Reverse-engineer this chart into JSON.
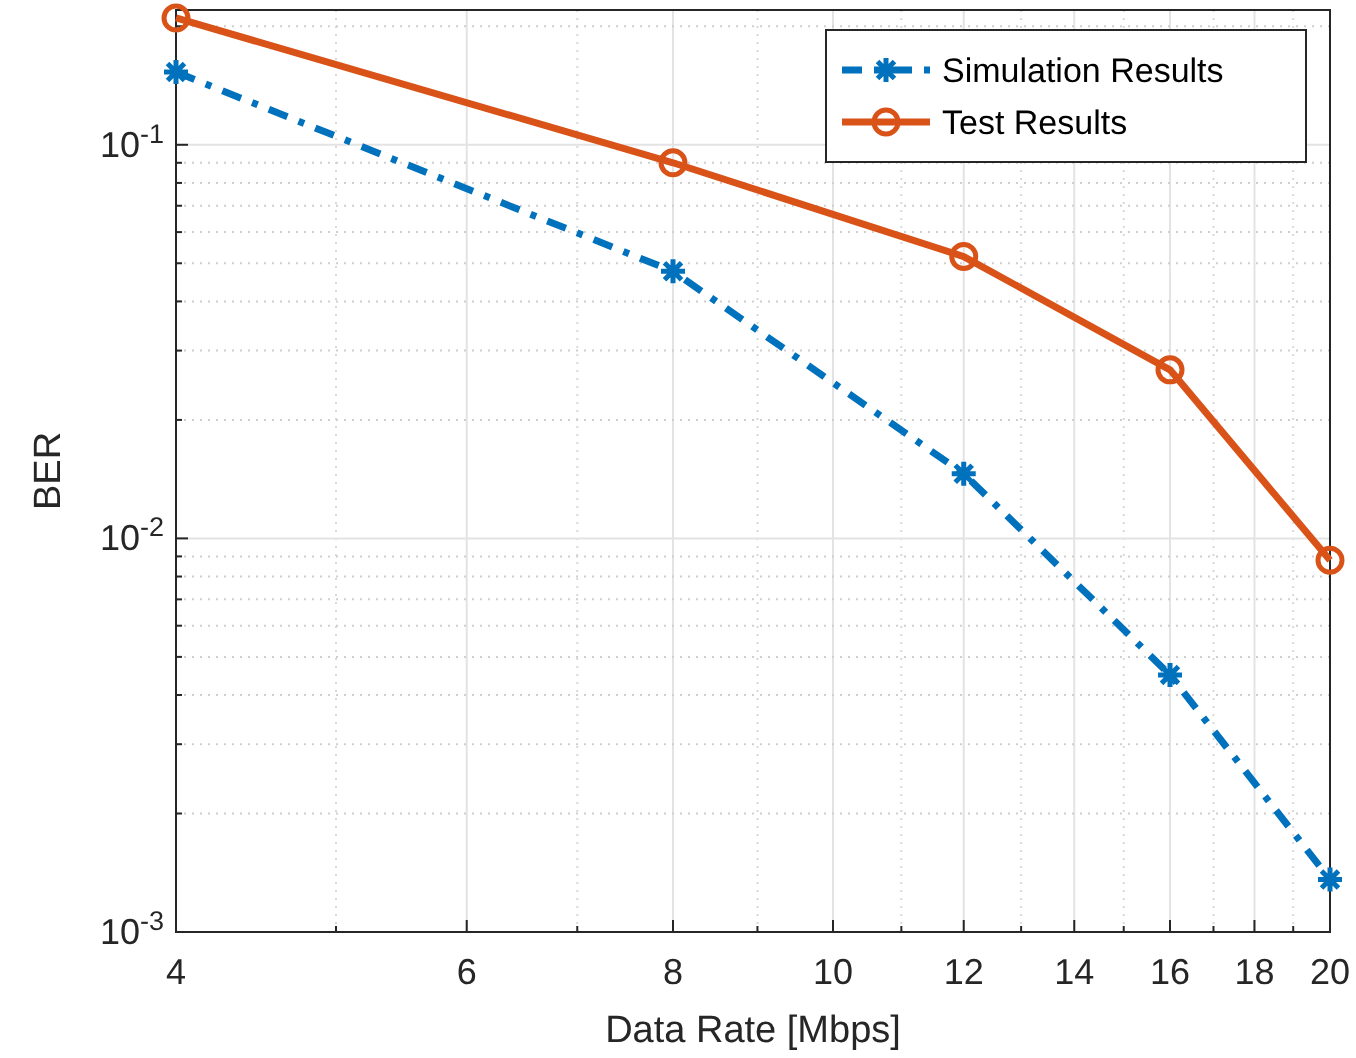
{
  "chart_data": {
    "type": "line",
    "xlabel": "Data Rate [Mbps]",
    "ylabel": "BER",
    "log": "xy",
    "grid": true,
    "legend": "top right",
    "xlim": [
      4,
      20
    ],
    "ylim": [
      0.001,
      0.22
    ],
    "xticks": [
      4,
      {
        "value": 5,
        "label": null
      },
      6,
      {
        "value": 7,
        "label": null
      },
      8,
      {
        "value": 9,
        "label": null
      },
      10,
      {
        "value": 11,
        "label": null
      },
      12,
      {
        "value": 13,
        "label": null
      },
      14,
      {
        "value": 15,
        "label": null
      },
      16,
      {
        "value": 17,
        "label": null
      },
      18,
      {
        "value": 19,
        "label": null
      },
      20
    ],
    "yticks": [
      {
        "value": 0.001,
        "label": "10$^{-3}$"
      },
      {
        "value": 0.002,
        "label": null
      },
      {
        "value": 0.003,
        "label": null
      },
      {
        "value": 0.004,
        "label": null
      },
      {
        "value": 0.005,
        "label": null
      },
      {
        "value": 0.006,
        "label": null
      },
      {
        "value": 0.007,
        "label": null
      },
      {
        "value": 0.008,
        "label": null
      },
      {
        "value": 0.009,
        "label": null
      },
      {
        "value": 0.01,
        "label": "10$^{-2}$"
      },
      {
        "value": 0.02,
        "label": null
      },
      {
        "value": 0.03,
        "label": null
      },
      {
        "value": 0.04,
        "label": null
      },
      {
        "value": 0.05,
        "label": null
      },
      {
        "value": 0.06,
        "label": null
      },
      {
        "value": 0.07,
        "label": null
      },
      {
        "value": 0.08,
        "label": null
      },
      {
        "value": 0.09,
        "label": null
      },
      {
        "value": 0.1,
        "label": "10$^{-1}$"
      },
      {
        "value": 0.2,
        "label": null
      }
    ],
    "x": [
      4,
      8,
      12,
      16,
      20
    ],
    "series": [
      {
        "name": "Simulation Results",
        "color": "#0072bd",
        "marker": "cross",
        "line_style": "dashed",
        "values": [
          0.153,
          0.0477,
          0.0146,
          0.0045,
          0.00136
        ]
      },
      {
        "name": "Test Results",
        "color": "#d95319",
        "marker": "circle",
        "line_style": "solid",
        "values": [
          0.21,
          0.09,
          0.052,
          0.0268,
          0.0088
        ]
      }
    ]
  }
}
